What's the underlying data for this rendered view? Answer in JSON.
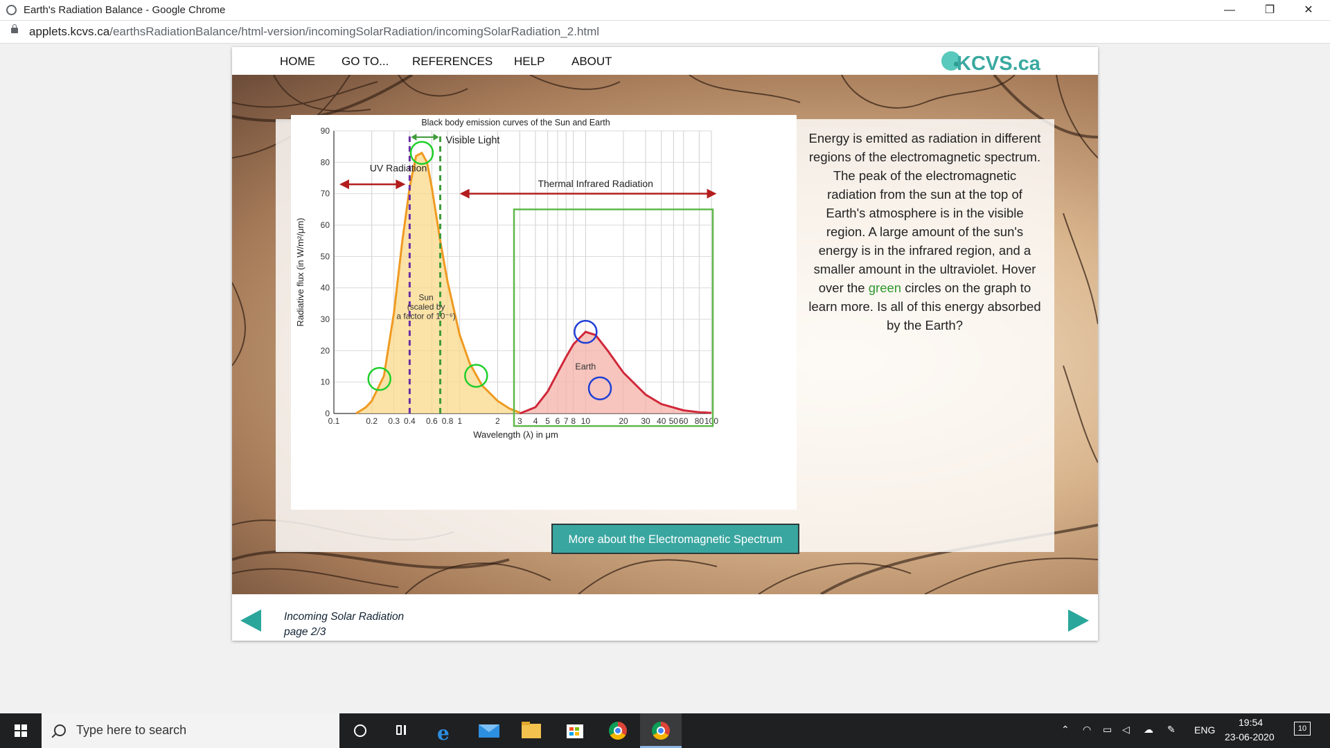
{
  "window": {
    "title": "Earth's Radiation Balance - Google Chrome",
    "minimize": "—",
    "maximize": "❐",
    "close": "✕"
  },
  "address": {
    "host": "applets.kcvs.ca",
    "path": "/earthsRadiationBalance/html-version/incomingSolarRadiation/incomingSolarRadiation_2.html"
  },
  "nav": {
    "items": [
      "HOME",
      "GO TO...",
      "REFERENCES",
      "HELP",
      "ABOUT"
    ],
    "logo_text": "KCVS.ca"
  },
  "chart_data": {
    "type": "area",
    "title": "Black body emission curves of the Sun and Earth",
    "xlabel": "Wavelength (λ) in μm",
    "ylabel": "Radiative flux (in W/m²/μm)",
    "x_scale": "log",
    "xlim": [
      0.1,
      100
    ],
    "ylim": [
      0,
      90
    ],
    "x_ticks": [
      "0.1",
      "0.2",
      "0.3",
      "0.4",
      "0.6",
      "0.8",
      "1",
      "2",
      "3",
      "4",
      "5",
      "6",
      "7",
      "8",
      "10",
      "20",
      "30",
      "40",
      "50",
      "60",
      "80",
      "100"
    ],
    "y_ticks": [
      "0",
      "10",
      "20",
      "30",
      "40",
      "50",
      "60",
      "70",
      "80",
      "90"
    ],
    "grid": true,
    "series": [
      {
        "name": "Sun",
        "color": "#ef9a21",
        "fill": "#f9d88a",
        "x": [
          0.15,
          0.18,
          0.2,
          0.25,
          0.3,
          0.35,
          0.4,
          0.45,
          0.5,
          0.55,
          0.6,
          0.7,
          0.8,
          1.0,
          1.2,
          1.5,
          2.0,
          2.5,
          3.0
        ],
        "y": [
          0,
          2,
          4,
          12,
          32,
          55,
          72,
          82,
          83,
          80,
          72,
          55,
          42,
          25,
          16,
          9,
          4,
          1.5,
          0.3
        ]
      },
      {
        "name": "Earth",
        "color": "#d0283a",
        "fill": "#f4b2a8",
        "x": [
          3.0,
          4,
          5,
          6,
          7,
          8,
          10,
          12,
          15,
          20,
          30,
          40,
          60,
          80,
          100
        ],
        "y": [
          0,
          2,
          7,
          13,
          18,
          22,
          26,
          25,
          20,
          13,
          6,
          3,
          1,
          0.4,
          0.2
        ]
      }
    ],
    "annotations": [
      {
        "text": "UV Radiation"
      },
      {
        "text": "Visible Light"
      },
      {
        "text": "Thermal Infrared Radiation"
      },
      {
        "text": "Sun"
      },
      {
        "text": "(scaled by"
      },
      {
        "text": "a factor of 10⁻⁶)"
      },
      {
        "text": "Earth"
      }
    ],
    "visible_range": [
      0.4,
      0.7
    ],
    "hotspots": [
      {
        "color": "green",
        "x": 0.23,
        "y": 11
      },
      {
        "color": "green",
        "x": 0.5,
        "y": 83
      },
      {
        "color": "green",
        "x": 1.35,
        "y": 12
      },
      {
        "color": "blue",
        "x": 10,
        "y": 26
      },
      {
        "color": "blue",
        "x": 13,
        "y": 8
      }
    ]
  },
  "description": {
    "before": "Energy is emitted as radiation in different regions of the electromagnetic spectrum. The peak of the electromagnetic radiation from the sun at the top of Earth's atmosphere is in the visible region. A large amount of the sun's energy is in the infrared region, and a smaller amount in the ultraviolet. Hover over the ",
    "highlight": "green",
    "after": " circles on the graph to learn more. Is all of this energy absorbed by the Earth?"
  },
  "button": {
    "label": "More about the Electromagnetic Spectrum"
  },
  "footer": {
    "section": "Incoming Solar Radiation",
    "page": "page 2/3"
  },
  "taskbar": {
    "search_placeholder": "Type here to search",
    "lang": "ENG",
    "time": "19:54",
    "date": "23-06-2020",
    "notifications": "10"
  }
}
